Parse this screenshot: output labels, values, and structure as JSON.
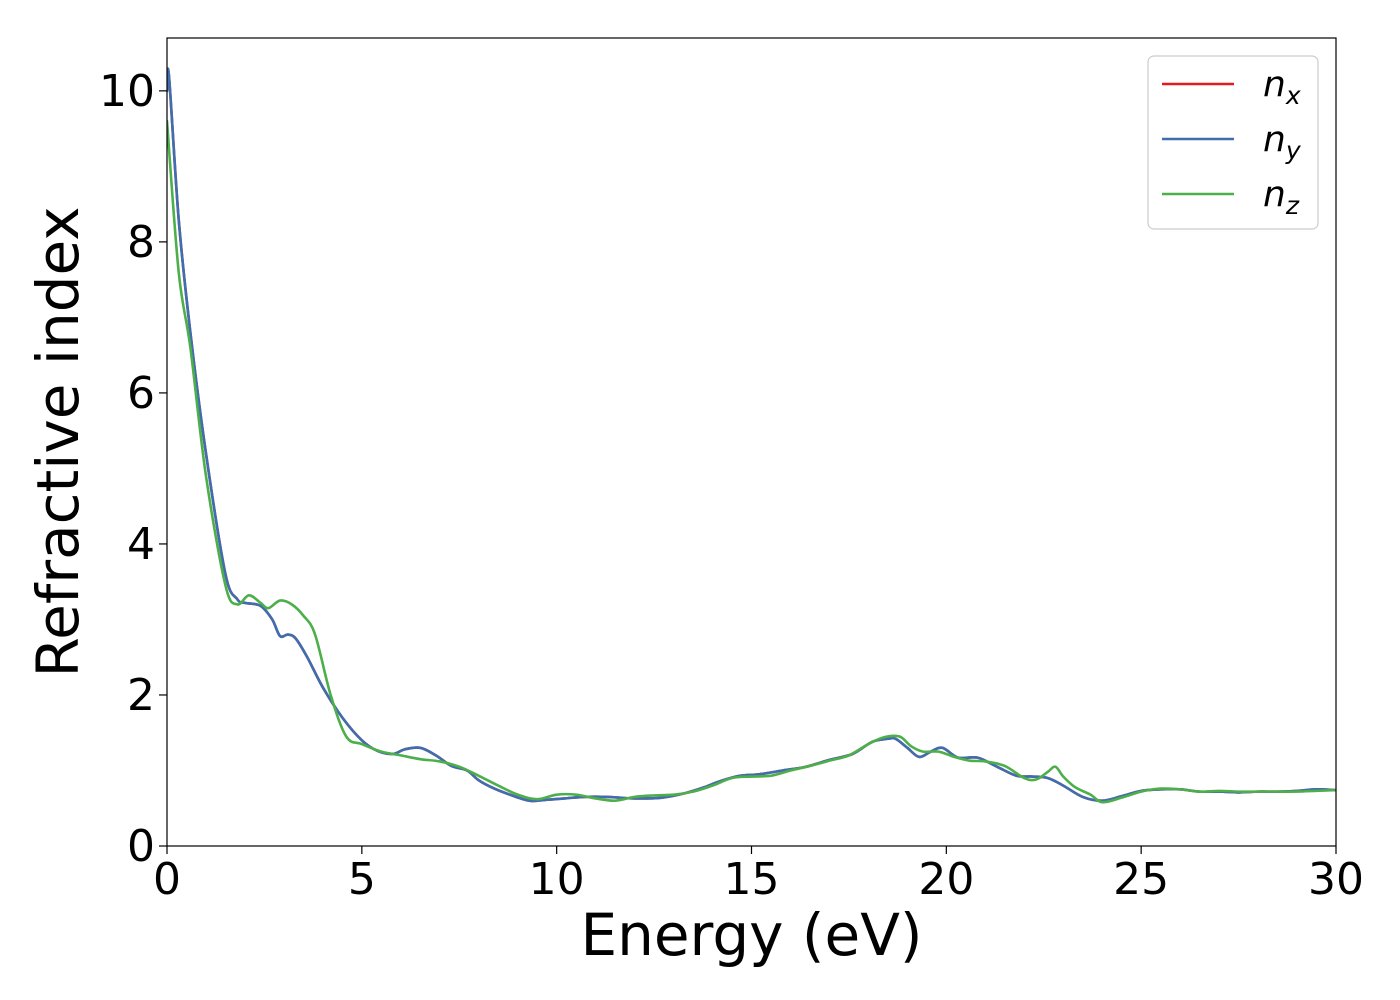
{
  "chart_data": {
    "type": "line",
    "xlabel": "Energy (eV)",
    "ylabel": "Refractive index",
    "xlim": [
      0,
      30
    ],
    "ylim": [
      0,
      10.7
    ],
    "xticks": [
      0,
      5,
      10,
      15,
      20,
      25,
      30
    ],
    "yticks": [
      0,
      2,
      4,
      6,
      8,
      10
    ],
    "xtick_labels": [
      "0",
      "5",
      "10",
      "15",
      "20",
      "25",
      "30"
    ],
    "ytick_labels": [
      "0",
      "2",
      "4",
      "6",
      "8",
      "10"
    ],
    "grid": false,
    "legend_position": "top-right",
    "series": [
      {
        "name": "n_x",
        "label_base": "n",
        "label_sub": "x",
        "color": "#e41a1c",
        "x": [
          0,
          0.05,
          0.3,
          0.6,
          1.0,
          1.5,
          1.8,
          2.0,
          2.4,
          2.7,
          2.9,
          3.1,
          3.3,
          3.6,
          4.0,
          4.5,
          5.0,
          5.4,
          5.8,
          6.1,
          6.5,
          6.9,
          7.3,
          7.7,
          8.0,
          8.4,
          8.8,
          9.3,
          9.7,
          10.2,
          10.7,
          11.3,
          12.0,
          12.7,
          13.3,
          13.8,
          14.2,
          14.7,
          15.2,
          15.8,
          16.4,
          17.0,
          17.6,
          18.1,
          18.5,
          18.7,
          19.0,
          19.3,
          19.6,
          19.9,
          20.3,
          20.8,
          21.3,
          21.8,
          22.2,
          22.6,
          23.0,
          23.5,
          24.0,
          24.5,
          25.0,
          25.5,
          26.0,
          26.5,
          27.0,
          27.5,
          28.0,
          28.5,
          29.0,
          29.5,
          30.0
        ],
        "y": [
          10.0,
          10.2,
          8.3,
          6.8,
          5.2,
          3.6,
          3.27,
          3.22,
          3.18,
          3.0,
          2.78,
          2.8,
          2.75,
          2.5,
          2.1,
          1.7,
          1.4,
          1.26,
          1.22,
          1.28,
          1.3,
          1.2,
          1.06,
          1.0,
          0.87,
          0.76,
          0.68,
          0.6,
          0.61,
          0.63,
          0.65,
          0.65,
          0.63,
          0.64,
          0.7,
          0.78,
          0.86,
          0.93,
          0.95,
          1.0,
          1.05,
          1.14,
          1.22,
          1.38,
          1.42,
          1.42,
          1.3,
          1.18,
          1.25,
          1.3,
          1.17,
          1.17,
          1.05,
          0.93,
          0.92,
          0.9,
          0.8,
          0.65,
          0.6,
          0.66,
          0.73,
          0.75,
          0.75,
          0.72,
          0.72,
          0.71,
          0.72,
          0.72,
          0.73,
          0.75,
          0.74
        ]
      },
      {
        "name": "n_y",
        "label_base": "n",
        "label_sub": "y",
        "color": "#3d6fb0",
        "x": [
          0,
          0.05,
          0.3,
          0.6,
          1.0,
          1.5,
          1.8,
          2.0,
          2.4,
          2.7,
          2.9,
          3.1,
          3.3,
          3.6,
          4.0,
          4.5,
          5.0,
          5.4,
          5.8,
          6.1,
          6.5,
          6.9,
          7.3,
          7.7,
          8.0,
          8.4,
          8.8,
          9.3,
          9.7,
          10.2,
          10.7,
          11.3,
          12.0,
          12.7,
          13.3,
          13.8,
          14.2,
          14.7,
          15.2,
          15.8,
          16.4,
          17.0,
          17.6,
          18.1,
          18.5,
          18.7,
          19.0,
          19.3,
          19.6,
          19.9,
          20.3,
          20.8,
          21.3,
          21.8,
          22.2,
          22.6,
          23.0,
          23.5,
          24.0,
          24.5,
          25.0,
          25.5,
          26.0,
          26.5,
          27.0,
          27.5,
          28.0,
          28.5,
          29.0,
          29.5,
          30.0
        ],
        "y": [
          10.0,
          10.2,
          8.3,
          6.8,
          5.2,
          3.6,
          3.27,
          3.22,
          3.18,
          3.0,
          2.78,
          2.8,
          2.75,
          2.5,
          2.1,
          1.7,
          1.4,
          1.26,
          1.22,
          1.28,
          1.3,
          1.2,
          1.06,
          1.0,
          0.87,
          0.76,
          0.68,
          0.6,
          0.61,
          0.63,
          0.65,
          0.65,
          0.63,
          0.64,
          0.7,
          0.78,
          0.86,
          0.93,
          0.95,
          1.0,
          1.05,
          1.14,
          1.22,
          1.38,
          1.42,
          1.42,
          1.3,
          1.18,
          1.25,
          1.3,
          1.17,
          1.17,
          1.05,
          0.93,
          0.92,
          0.9,
          0.8,
          0.65,
          0.6,
          0.66,
          0.73,
          0.75,
          0.75,
          0.72,
          0.72,
          0.71,
          0.72,
          0.72,
          0.73,
          0.75,
          0.74
        ]
      },
      {
        "name": "n_z",
        "label_base": "n",
        "label_sub": "z",
        "color": "#4daf4a",
        "x": [
          0,
          0.3,
          0.6,
          1.0,
          1.5,
          1.8,
          2.1,
          2.4,
          2.6,
          2.9,
          3.2,
          3.5,
          3.8,
          4.2,
          4.6,
          5.0,
          5.5,
          6.0,
          6.5,
          7.0,
          7.5,
          8.0,
          8.5,
          9.0,
          9.5,
          10.0,
          10.5,
          11.0,
          11.5,
          12.0,
          12.5,
          13.0,
          13.5,
          14.0,
          14.5,
          15.0,
          15.5,
          16.0,
          16.5,
          17.0,
          17.5,
          18.0,
          18.4,
          18.8,
          19.1,
          19.4,
          19.8,
          20.2,
          20.6,
          21.0,
          21.5,
          22.0,
          22.3,
          22.6,
          22.8,
          23.0,
          23.3,
          23.7,
          24.0,
          24.5,
          25.0,
          25.5,
          26.0,
          26.5,
          27.0,
          27.5,
          28.0,
          28.5,
          29.0,
          29.5,
          30.0
        ],
        "y": [
          9.6,
          7.6,
          6.6,
          4.9,
          3.45,
          3.2,
          3.32,
          3.22,
          3.15,
          3.25,
          3.2,
          3.05,
          2.8,
          2.0,
          1.45,
          1.35,
          1.25,
          1.2,
          1.15,
          1.12,
          1.05,
          0.93,
          0.8,
          0.68,
          0.62,
          0.68,
          0.68,
          0.63,
          0.6,
          0.65,
          0.67,
          0.68,
          0.72,
          0.8,
          0.9,
          0.92,
          0.93,
          1.0,
          1.06,
          1.13,
          1.2,
          1.35,
          1.44,
          1.45,
          1.32,
          1.25,
          1.25,
          1.18,
          1.13,
          1.12,
          1.06,
          0.9,
          0.88,
          0.98,
          1.05,
          0.92,
          0.78,
          0.68,
          0.58,
          0.64,
          0.72,
          0.76,
          0.75,
          0.72,
          0.73,
          0.72,
          0.72,
          0.72,
          0.72,
          0.73,
          0.74
        ]
      }
    ]
  }
}
